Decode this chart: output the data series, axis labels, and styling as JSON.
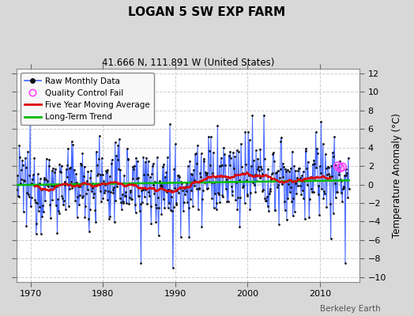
{
  "title": "LOGAN 5 SW EXP FARM",
  "subtitle": "41.666 N, 111.891 W (United States)",
  "ylabel": "Temperature Anomaly (°C)",
  "credit": "Berkeley Earth",
  "xlim": [
    1968.0,
    2015.5
  ],
  "ylim": [
    -10.5,
    12.5
  ],
  "yticks": [
    -10,
    -8,
    -6,
    -4,
    -2,
    0,
    2,
    4,
    6,
    8,
    10,
    12
  ],
  "xticks": [
    1970,
    1980,
    1990,
    2000,
    2010
  ],
  "bg_color": "#d8d8d8",
  "plot_bg_color": "#ffffff",
  "raw_line_color": "#4466ff",
  "raw_fill_color": "#aabbff",
  "raw_dot_color": "#111111",
  "moving_avg_color": "#dd0000",
  "trend_color": "#00bb00",
  "qc_fail_color": "#ff44ff",
  "seed": 12345,
  "n_years": 46,
  "start_year": 1968.08
}
